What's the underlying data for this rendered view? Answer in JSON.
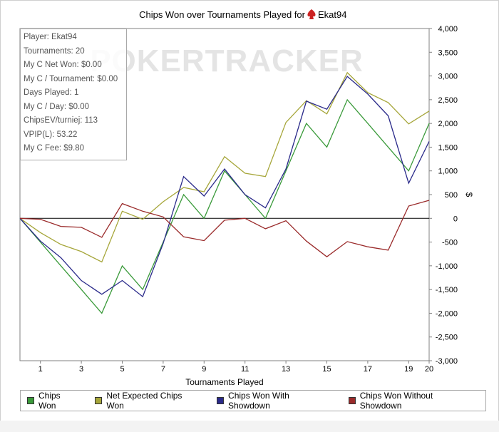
{
  "chart_data": {
    "type": "line",
    "title": "Chips Won over Tournaments Played for",
    "player_name": "Ekat94",
    "xlabel": "Tournaments Played",
    "ylabel": "$",
    "xlim": [
      0,
      20
    ],
    "ylim": [
      -3000,
      4000
    ],
    "x_ticks": [
      "1",
      "3",
      "5",
      "7",
      "9",
      "11",
      "13",
      "15",
      "17",
      "19",
      "20"
    ],
    "y_ticks": [
      "4,000",
      "3,500",
      "3,000",
      "2,500",
      "2,000",
      "1,500",
      "1,000",
      "500",
      "0",
      "-500",
      "-1,000",
      "-1,500",
      "-2,000",
      "-2,500",
      "-3,000"
    ],
    "watermark": "POKERTRACKER",
    "x": [
      0,
      1,
      2,
      3,
      4,
      5,
      6,
      7,
      8,
      9,
      10,
      11,
      12,
      13,
      14,
      15,
      16,
      17,
      18,
      19,
      20
    ],
    "series": [
      {
        "name": "Chips Won",
        "color": "#3a9a3a",
        "values": [
          0,
          -500,
          -1000,
          -1500,
          -2000,
          -1000,
          -1500,
          -500,
          500,
          0,
          1000,
          500,
          0,
          1000,
          2000,
          1500,
          2500,
          2000,
          1500,
          1000,
          2000
        ]
      },
      {
        "name": "Net Expected Chips Won",
        "color": "#a6a63a",
        "values": [
          0,
          -300,
          -550,
          -700,
          -920,
          150,
          -20,
          350,
          650,
          560,
          1300,
          950,
          880,
          2020,
          2480,
          2200,
          3070,
          2650,
          2440,
          1990,
          2260
        ]
      },
      {
        "name": "Chips Won With Showdown",
        "color": "#2a2a8a",
        "values": [
          0,
          -480,
          -830,
          -1310,
          -1600,
          -1310,
          -1650,
          -530,
          880,
          470,
          1040,
          500,
          220,
          1040,
          2470,
          2300,
          2990,
          2620,
          2160,
          740,
          1620
        ]
      },
      {
        "name": "Chips Won Without Showdown",
        "color": "#9a2a2a",
        "values": [
          0,
          -20,
          -170,
          -190,
          -400,
          310,
          150,
          30,
          -390,
          -470,
          -40,
          0,
          -220,
          -50,
          -480,
          -810,
          -490,
          -600,
          -670,
          260,
          380
        ]
      }
    ]
  },
  "info_box": [
    "Player: Ekat94",
    "Tournaments: 20",
    "My C Net Won: $0.00",
    "My C / Tournament: $0.00",
    "Days Played: 1",
    "My C / Day: $0.00",
    "ChipsEV/turniej: 113",
    "VPIP(L): 53.22",
    "My C Fee: $9.80"
  ],
  "legend": [
    {
      "label": "Chips Won",
      "color": "#3a9a3a"
    },
    {
      "label": "Net Expected Chips Won",
      "color": "#a6a63a"
    },
    {
      "label": "Chips Won With Showdown",
      "color": "#2a2a8a"
    },
    {
      "label": "Chips Won Without Showdown",
      "color": "#9a2a2a"
    }
  ],
  "colors": {
    "suit_icon": "#cc2222",
    "zero_line": "#000000",
    "watermark": "#e4e4e4"
  }
}
